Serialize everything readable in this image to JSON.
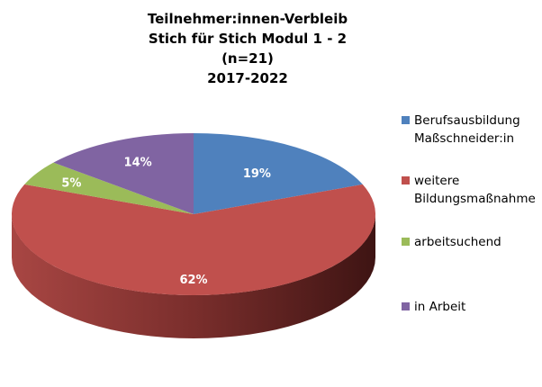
{
  "chart_data": {
    "type": "pie",
    "title": [
      "Teilnehmer:innen-Verbleib",
      "Stich für Stich Modul 1 - 2",
      "(n=21)",
      "2017-2022"
    ],
    "slices": [
      {
        "label": "Berufsausbildung Maßschneider:in",
        "value": 19,
        "display": "19%",
        "color": "#4f81bd",
        "side": "#2f4f77"
      },
      {
        "label": "weitere Bildungsmaßnahme",
        "value": 62,
        "display": "62%",
        "color": "#c0504d",
        "side": "#7a2a28"
      },
      {
        "label": "arbeitsuchend",
        "value": 5,
        "display": "5%",
        "color": "#9bbb59",
        "side": "#5f7a30"
      },
      {
        "label": "in Arbeit",
        "value": 14,
        "display": "14%",
        "color": "#8064a2",
        "side": "#4f3c68"
      }
    ],
    "legend_position": "right",
    "legend_lines": [
      [
        "Berufsausbildung",
        "Maßschneider:in"
      ],
      [
        "weitere",
        "Bildungsmaßnahme"
      ],
      [
        "arbeitsuchend"
      ],
      [
        "in Arbeit"
      ]
    ]
  }
}
